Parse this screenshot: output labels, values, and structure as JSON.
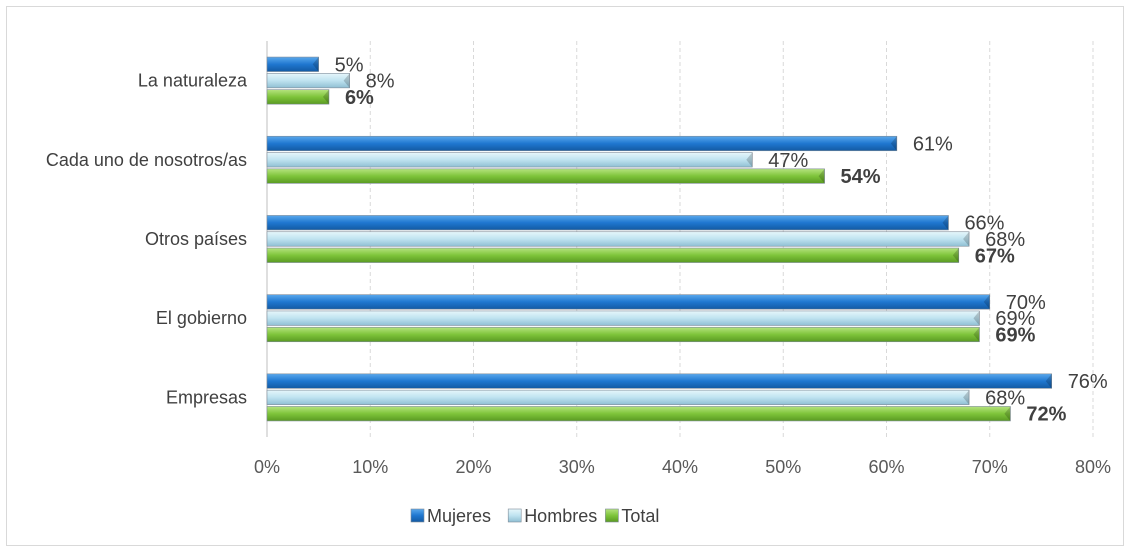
{
  "chart_data": {
    "type": "bar",
    "orientation": "horizontal",
    "categories": [
      "La naturaleza",
      "Cada uno de nosotros/as",
      "Otros países",
      "El gobierno",
      "Empresas"
    ],
    "series": [
      {
        "name": "Mujeres",
        "values": [
          5,
          61,
          66,
          70,
          76
        ],
        "labels": [
          "5%",
          "61%",
          "66%",
          "70%",
          "76%"
        ],
        "color": "#1f77d0"
      },
      {
        "name": "Hombres",
        "values": [
          8,
          47,
          68,
          69,
          68
        ],
        "labels": [
          "8%",
          "47%",
          "68%",
          "69%",
          "68%"
        ],
        "color": "#bfe3f0"
      },
      {
        "name": "Total",
        "values": [
          6,
          54,
          67,
          69,
          72
        ],
        "labels": [
          "6%",
          "54%",
          "67%",
          "69%",
          "72%"
        ],
        "color": "#7ec43a"
      }
    ],
    "xlim": [
      0,
      80
    ],
    "ticks": [
      "0%",
      "10%",
      "20%",
      "30%",
      "40%",
      "50%",
      "60%",
      "70%",
      "80%"
    ],
    "grid": true,
    "legend_position": "bottom-center"
  }
}
